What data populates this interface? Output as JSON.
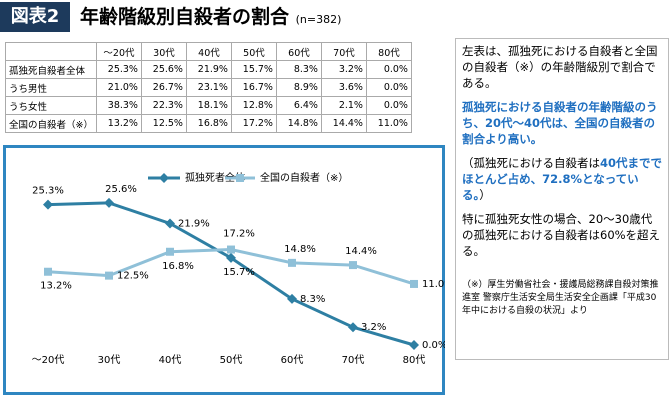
{
  "header": {
    "label": "図表2",
    "title": "年齢階級別自殺者の割合",
    "n": "(n=382)"
  },
  "table": {
    "columns": [
      "〜20代",
      "30代",
      "40代",
      "50代",
      "60代",
      "70代",
      "80代"
    ],
    "rows": [
      [
        "孤独死自殺者全体",
        "25.3%",
        "25.6%",
        "21.9%",
        "15.7%",
        "8.3%",
        "3.2%",
        "0.0%"
      ],
      [
        "うち男性",
        "21.0%",
        "26.7%",
        "23.1%",
        "16.7%",
        "8.9%",
        "3.6%",
        "0.0%"
      ],
      [
        "うち女性",
        "38.3%",
        "22.3%",
        "18.1%",
        "12.8%",
        "6.4%",
        "2.1%",
        "0.0%"
      ],
      [
        "全国の自殺者（※）",
        "13.2%",
        "12.5%",
        "16.8%",
        "17.2%",
        "14.8%",
        "14.4%",
        "11.0%"
      ]
    ]
  },
  "chart_data": {
    "type": "line",
    "categories": [
      "〜20代",
      "30代",
      "40代",
      "50代",
      "60代",
      "70代",
      "80代"
    ],
    "series": [
      {
        "name": "孤独死者全体",
        "color": "#2e7fa3",
        "values": [
          25.3,
          25.6,
          21.9,
          15.7,
          8.3,
          3.2,
          0.0
        ],
        "value_labels": [
          "25.3%",
          "25.6%",
          "21.9%",
          "15.7%",
          "8.3%",
          "3.2%",
          "0.0%"
        ]
      },
      {
        "name": "全国の自殺者（※）",
        "color": "#8fc0d8",
        "values": [
          13.2,
          12.5,
          16.8,
          17.2,
          14.8,
          14.4,
          11.0
        ],
        "value_labels": [
          "13.2%",
          "12.5%",
          "16.8%",
          "17.2%",
          "14.8%",
          "14.4%",
          "11.0%"
        ]
      }
    ],
    "ylim": [
      0,
      30
    ]
  },
  "panel": {
    "p1": "左表は、孤独死における自殺者と全国の自殺者（※）の年齢階級別で割合である。",
    "p2": "孤独死における自殺者の年齢階級のうち、20代〜40代は、全国の自殺者の割合より高い。",
    "p3a": "（孤独死における自殺者は",
    "p3b": "40代まででほとんど占め、72.8%となっている。",
    "p3c": "）",
    "p4": "特に孤独死女性の場合、20〜30歳代の孤独死における自殺者は60%を超える。",
    "note": "（※）厚生労働省社会・援護局総務課自殺対策推進室 警察庁生活安全局生活安全企画課「平成30年中における自殺の状況」より"
  }
}
